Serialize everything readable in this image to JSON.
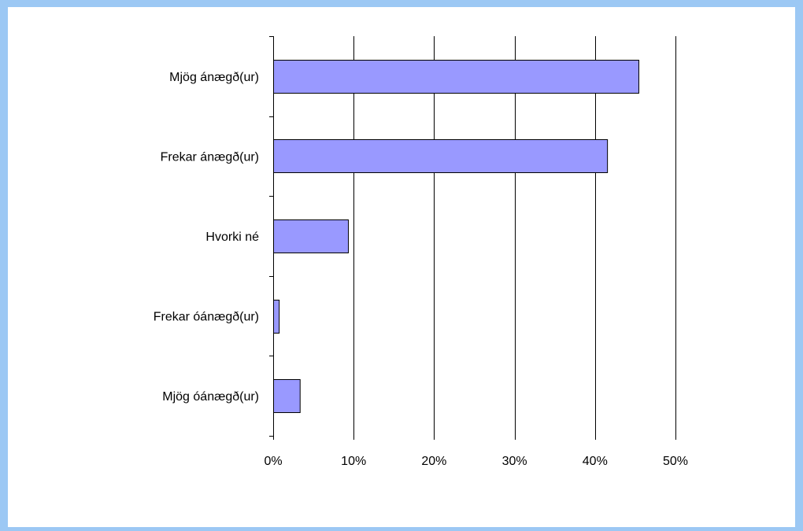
{
  "chart_data": {
    "type": "bar",
    "orientation": "horizontal",
    "title": "",
    "xlabel": "",
    "ylabel": "",
    "categories": [
      "Mjög ánægð(ur)",
      "Frekar ánægð(ur)",
      "Hvorki né",
      "Frekar óánægð(ur)",
      "Mjög óánægð(ur)"
    ],
    "values": [
      45.4,
      41.5,
      9.3,
      0.7,
      3.3
    ],
    "value_unit": "%",
    "xlim": [
      0,
      50
    ],
    "x_ticks": [
      0,
      10,
      20,
      30,
      40,
      50
    ],
    "x_tick_labels": [
      "0%",
      "10%",
      "20%",
      "30%",
      "40%",
      "50%"
    ],
    "grid": "vertical",
    "legend": "none",
    "colors": {
      "bar_fill": "#9999ff",
      "bar_stroke": "#000000",
      "frame_border": "#9cc8f4",
      "gridline": "#000000"
    }
  }
}
